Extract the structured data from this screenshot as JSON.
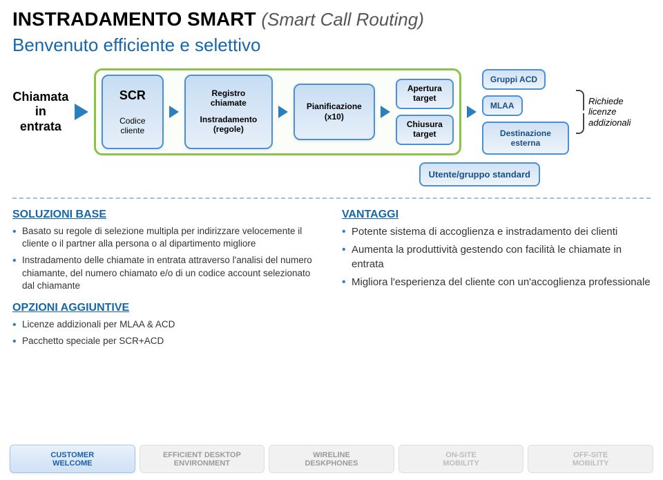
{
  "title_main": "INSTRADAMENTO SMART",
  "title_sub": "(Smart Call Routing)",
  "subheading": "Benvenuto efficiente e selettivo",
  "flow": {
    "start": "Chiamata\nin\nentrata",
    "scr": {
      "title": "SCR",
      "sub": "Codice\ncliente"
    },
    "routing": {
      "a": "Registro\nchiamate",
      "b": "Instradamento\n(regole)"
    },
    "plan": "Pianificazione\n(x10)",
    "targets": {
      "open": "Apertura\ntarget",
      "close": "Chiusura\ntarget"
    },
    "dest": {
      "acd": "Gruppi ACD",
      "mlaa": "MLAA",
      "ext": "Destinazione esterna"
    },
    "richiede": "Richiede\nlicenze\naddizionali",
    "utente": "Utente/gruppo standard"
  },
  "colors": {
    "accent_blue": "#2b7fbe",
    "heading_blue": "#1766a7",
    "module_border": "#4a8fd8",
    "green_border": "#8bc34a",
    "dashed": "#9bbfe2"
  },
  "soluzioni": {
    "heading": "SOLUZIONI BASE",
    "items": [
      "Basato su regole di selezione multipla per indirizzare velocemente il cliente o il partner alla persona o al dipartimento migliore",
      "Instradamento delle chiamate in entrata attraverso l'analisi del numero chiamante, del numero chiamato e/o di un codice account selezionato dal chiamante"
    ]
  },
  "opzioni": {
    "heading": "OPZIONI AGGIUNTIVE",
    "items": [
      "Licenze addizionali per MLAA & ACD",
      "Pacchetto speciale per SCR+ACD"
    ]
  },
  "vantaggi": {
    "heading": "VANTAGGI",
    "items": [
      "Potente sistema di accoglienza e instradamento dei clienti",
      "Aumenta la produttività gestendo con facilità le chiamate in entrata",
      "Migliora l'esperienza del cliente con un'accoglienza professionale"
    ]
  },
  "tabs": [
    {
      "line1": "CUSTOMER",
      "line2": "WELCOME",
      "style": "blue-active"
    },
    {
      "line1": "EFFICIENT DESKTOP",
      "line2": "ENVIRONMENT",
      "style": "grey"
    },
    {
      "line1": "WIRELINE",
      "line2": "DESKPHONES",
      "style": "grey"
    },
    {
      "line1": "ON-SITE",
      "line2": "MOBILITY",
      "style": "grey2"
    },
    {
      "line1": "OFF-SITE",
      "line2": "MOBILITY",
      "style": "grey2"
    }
  ]
}
